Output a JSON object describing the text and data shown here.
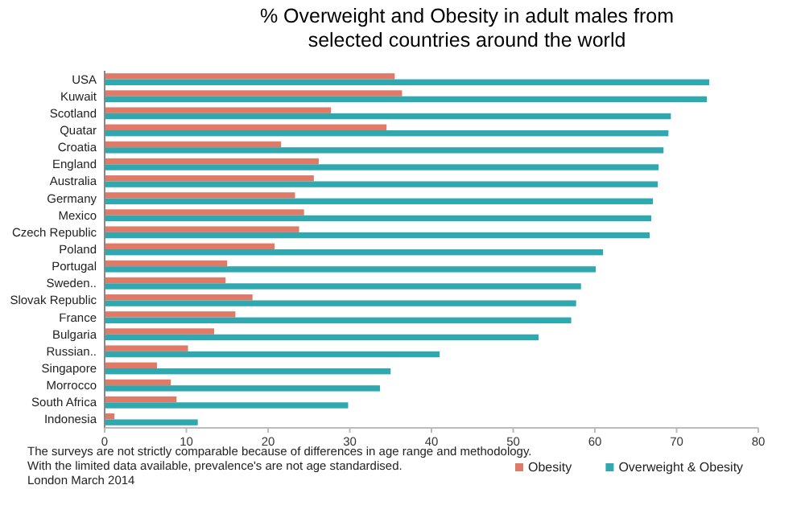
{
  "chart_data": {
    "type": "bar",
    "orientation": "horizontal",
    "title": "% Overweight and Obesity in adult males from selected countries around the world",
    "categories": [
      "USA",
      "Kuwait",
      "Scotland",
      "Quatar",
      "Croatia",
      "England",
      "Australia",
      "Germany",
      "Mexico",
      "Czech Republic",
      "Poland",
      "Portugal",
      "Sweden..",
      "Slovak Republic",
      "France",
      "Bulgaria",
      "Russian..",
      "Singapore",
      "Morrocco",
      "South Africa",
      "Indonesia"
    ],
    "series": [
      {
        "name": "Obesity",
        "color": "#e07a66",
        "values": [
          35.5,
          36.4,
          27.7,
          34.5,
          21.6,
          26.2,
          25.6,
          23.3,
          24.4,
          23.8,
          20.8,
          15.0,
          14.8,
          18.1,
          16.0,
          13.4,
          10.2,
          6.4,
          8.1,
          8.8,
          1.2
        ]
      },
      {
        "name": "Overweight & Obesity",
        "color": "#2fa8b0",
        "values": [
          74.0,
          73.7,
          69.3,
          69.0,
          68.4,
          67.8,
          67.7,
          67.1,
          66.9,
          66.7,
          61.0,
          60.1,
          58.3,
          57.7,
          57.1,
          53.1,
          41.0,
          35.0,
          33.7,
          29.8,
          11.4
        ]
      }
    ],
    "xlim": [
      0,
      80
    ],
    "xticks": [
      0,
      10,
      20,
      30,
      40,
      50,
      60,
      70,
      80
    ],
    "grid": false,
    "legend": "bottom right",
    "annotations": [
      "The surveys are not strictly comparable because of differences in age range and methodology.",
      "With the limited data available, prevalence's are not age standardised.",
      "London  March 2014"
    ]
  }
}
